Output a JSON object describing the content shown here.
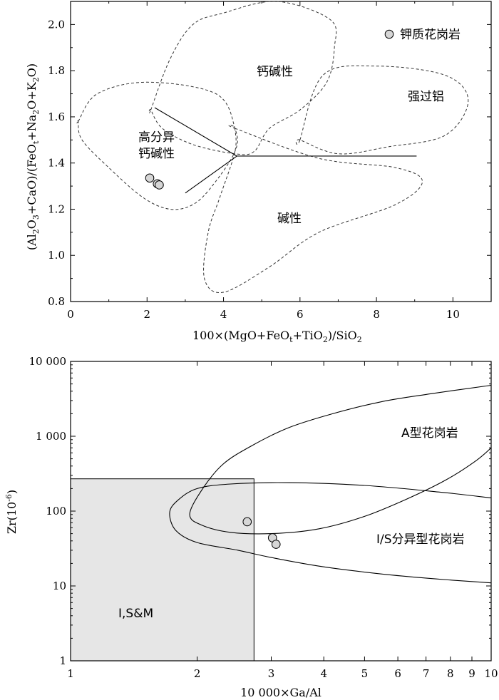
{
  "chart_data": [
    {
      "type": "scatter",
      "xlabel": "100×(MgO+FeOt+TiO2)/SiO2",
      "ylabel": "(Al2O3+CaO)/(FeOt+Na2O+K2O)",
      "xlim": [
        0,
        11
      ],
      "ylim": [
        0.8,
        2.1
      ],
      "xticks": [
        0,
        2,
        4,
        6,
        8,
        10
      ],
      "yticks": [
        0.8,
        1.0,
        1.2,
        1.4,
        1.6,
        1.8,
        2.0
      ],
      "xtick_labels": [
        "0",
        "2",
        "4",
        "6",
        "8",
        "10"
      ],
      "ytick_labels": [
        "0.8",
        "1.0",
        "1.2",
        "1.4",
        "1.6",
        "1.8",
        "2.0"
      ],
      "legend": {
        "label": "钾质花岗岩",
        "position": "top-right"
      },
      "series": [
        {
          "name": "钾质花岗岩",
          "x": [
            2.07,
            2.27,
            2.32
          ],
          "y": [
            1.335,
            1.31,
            1.305
          ]
        }
      ],
      "regions": [
        {
          "label": "钙碱性",
          "boundary": [
            [
              2.1,
              1.63
            ],
            [
              2.6,
              1.85
            ],
            [
              3.2,
              2.0
            ],
            [
              4.0,
              2.05
            ],
            [
              5.4,
              2.1
            ],
            [
              6.8,
              2.02
            ],
            [
              6.9,
              1.9
            ],
            [
              6.7,
              1.75
            ],
            [
              6.0,
              1.63
            ],
            [
              5.2,
              1.55
            ],
            [
              4.8,
              1.45
            ],
            [
              4.3,
              1.44
            ],
            [
              3.2,
              1.48
            ],
            [
              2.4,
              1.55
            ],
            [
              2.1,
              1.63
            ]
          ]
        },
        {
          "label": "强过铝",
          "boundary": [
            [
              6.0,
              1.5
            ],
            [
              6.6,
              1.78
            ],
            [
              8.0,
              1.82
            ],
            [
              9.8,
              1.78
            ],
            [
              10.4,
              1.67
            ],
            [
              9.8,
              1.52
            ],
            [
              8.3,
              1.47
            ],
            [
              7.0,
              1.44
            ],
            [
              6.0,
              1.5
            ]
          ]
        },
        {
          "label": "高分异钙碱性",
          "boundary": [
            [
              0.2,
              1.58
            ],
            [
              0.7,
              1.7
            ],
            [
              2.0,
              1.75
            ],
            [
              3.8,
              1.7
            ],
            [
              4.3,
              1.55
            ],
            [
              4.3,
              1.45
            ],
            [
              3.7,
              1.3
            ],
            [
              3.2,
              1.22
            ],
            [
              2.6,
              1.2
            ],
            [
              1.9,
              1.25
            ],
            [
              1.0,
              1.38
            ],
            [
              0.3,
              1.5
            ],
            [
              0.2,
              1.58
            ]
          ]
        },
        {
          "label": "碱性",
          "boundary": [
            [
              4.3,
              1.55
            ],
            [
              6.5,
              1.42
            ],
            [
              8.5,
              1.38
            ],
            [
              9.2,
              1.32
            ],
            [
              8.5,
              1.22
            ],
            [
              6.5,
              1.1
            ],
            [
              5.2,
              0.95
            ],
            [
              4.0,
              0.84
            ],
            [
              3.5,
              0.9
            ],
            [
              3.6,
              1.1
            ],
            [
              3.9,
              1.25
            ],
            [
              4.3,
              1.45
            ],
            [
              4.3,
              1.55
            ]
          ]
        }
      ],
      "boundary_lines": [
        [
          [
            2.2,
            1.64
          ],
          [
            4.35,
            1.43
          ]
        ],
        [
          [
            3.0,
            1.27
          ],
          [
            4.35,
            1.43
          ]
        ],
        [
          [
            4.35,
            1.43
          ],
          [
            9.05,
            1.43
          ]
        ]
      ]
    },
    {
      "type": "scatter",
      "xlabel": "10 000×Ga/Al",
      "ylabel": "Zr(10⁻⁶)",
      "xscale": "log",
      "yscale": "log",
      "xlim": [
        1,
        10
      ],
      "ylim": [
        1,
        10000
      ],
      "xticks": [
        1,
        2,
        3,
        4,
        5,
        6,
        7,
        8,
        9,
        10
      ],
      "yticks": [
        1,
        10,
        100,
        1000,
        10000
      ],
      "xtick_labels": [
        "1",
        "2",
        "3",
        "4",
        "5",
        "6",
        "7",
        "8",
        "9",
        "10"
      ],
      "ytick_labels": [
        "1",
        "10",
        "100",
        "1 000",
        "10 000"
      ],
      "series": [
        {
          "name": "钾质花岗岩",
          "x": [
            2.63,
            3.02,
            3.08
          ],
          "y": [
            72,
            44,
            36
          ]
        }
      ],
      "regions": [
        {
          "label": "A型花岗岩",
          "boundary": [
            [
              10,
              4800
            ],
            [
              7.2,
              3700
            ],
            [
              5.5,
              2900
            ],
            [
              4.2,
              2000
            ],
            [
              3.3,
              1300
            ],
            [
              2.7,
              750
            ],
            [
              2.3,
              420
            ],
            [
              2.05,
              190
            ],
            [
              1.92,
              90
            ],
            [
              2.05,
              65
            ],
            [
              2.4,
              52
            ],
            [
              3.0,
              50
            ],
            [
              3.9,
              58
            ],
            [
              5.0,
              85
            ],
            [
              6.3,
              145
            ],
            [
              7.8,
              260
            ],
            [
              9.2,
              470
            ],
            [
              10,
              700
            ]
          ]
        },
        {
          "label": "I/S分异型花岗岩",
          "boundary": [
            [
              10,
              150
            ],
            [
              7.5,
              180
            ],
            [
              5.0,
              220
            ],
            [
              3.3,
              240
            ],
            [
              2.4,
              230
            ],
            [
              2.0,
              200
            ],
            [
              1.8,
              140
            ],
            [
              1.72,
              95
            ],
            [
              1.78,
              55
            ],
            [
              2.0,
              38
            ],
            [
              2.5,
              30
            ],
            [
              3.0,
              24
            ],
            [
              4.0,
              18
            ],
            [
              5.8,
              14
            ],
            [
              8.0,
              12
            ],
            [
              10,
              11
            ]
          ]
        },
        {
          "label": "I,S&M",
          "x": [
            1,
            2.73
          ],
          "y": [
            1,
            270
          ]
        }
      ]
    }
  ],
  "top": {
    "xlabel_plain": "100×(MgO+FeO",
    "xlabel_sub1": "t",
    "xlabel_mid": "+TiO",
    "xlabel_sub2": "2",
    "xlabel_end": ")/SiO",
    "xlabel_sub3": "2",
    "ylabel_p1": "(Al",
    "ylabel_s1": "2",
    "ylabel_p2": "O",
    "ylabel_s2": "3",
    "ylabel_p3": "+CaO)/(FeO",
    "ylabel_s3": "t",
    "ylabel_p4": "+Na",
    "ylabel_s4": "2",
    "ylabel_p5": "O+K",
    "ylabel_s5": "2",
    "ylabel_p6": "O)",
    "labels": {
      "calc_alkaline": "钙碱性",
      "strong_peraluminous": "强过铝",
      "highly_fractionated_1": "高分异",
      "highly_fractionated_2": "钙碱性",
      "alkaline": "碱性"
    }
  },
  "bottom": {
    "ylabel_base": "Zr(10",
    "ylabel_sup": "-6",
    "ylabel_end": ")",
    "xlabel": "10 000×Ga/Al",
    "labels": {
      "a_type": "A型花岗岩",
      "is_type": "I/S分异型花岗岩",
      "ism": "I,S&M"
    }
  },
  "colors": {
    "point_fill": "#d6d6d6",
    "ism_fill": "#e6e6e6",
    "line": "#000000"
  }
}
